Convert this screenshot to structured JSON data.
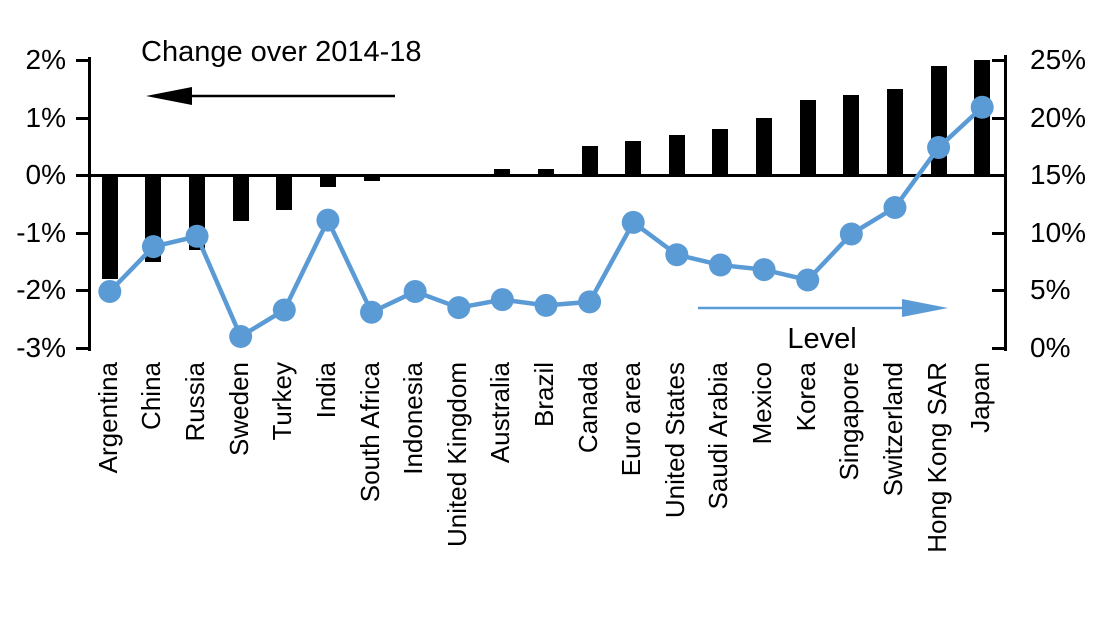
{
  "chart_data": {
    "type": "combo",
    "categories": [
      "Argentina",
      "China",
      "Russia",
      "Sweden",
      "Turkey",
      "India",
      "South Africa",
      "Indonesia",
      "United Kingdom",
      "Australia",
      "Brazil",
      "Canada",
      "Euro area",
      "United States",
      "Saudi Arabia",
      "Mexico",
      "Korea",
      "Singapore",
      "Switzerland",
      "Hong Kong SAR",
      "Japan"
    ],
    "series": [
      {
        "name": "Change over 2014-18",
        "type": "bar",
        "axis": "left",
        "color": "#000000",
        "values": [
          -1.8,
          -1.5,
          -1.3,
          -0.8,
          -0.6,
          -0.2,
          -0.1,
          0.0,
          0.0,
          0.1,
          0.1,
          0.5,
          0.6,
          0.7,
          0.8,
          1.0,
          1.3,
          1.4,
          1.5,
          1.9,
          2.0
        ]
      },
      {
        "name": "Level",
        "type": "line",
        "axis": "right",
        "color": "#5B9BD5",
        "values": [
          4.9,
          8.8,
          9.7,
          1.0,
          3.3,
          11.1,
          3.1,
          4.9,
          3.5,
          4.2,
          3.7,
          4.0,
          10.9,
          8.1,
          7.2,
          6.8,
          5.9,
          9.9,
          12.2,
          17.4,
          20.9
        ]
      }
    ],
    "left_axis": {
      "range": [
        -3,
        2
      ],
      "ticks": [
        {
          "label": "2%",
          "value": 2
        },
        {
          "label": "1%",
          "value": 1
        },
        {
          "label": "0%",
          "value": 0
        },
        {
          "label": "-1%",
          "value": -1
        },
        {
          "label": "-2%",
          "value": -2
        },
        {
          "label": "-3%",
          "value": -3
        }
      ]
    },
    "right_axis": {
      "range": [
        0,
        25
      ],
      "ticks": [
        {
          "label": "25%",
          "value": 25
        },
        {
          "label": "20%",
          "value": 20
        },
        {
          "label": "15%",
          "value": 15
        },
        {
          "label": "10%",
          "value": 10
        },
        {
          "label": "5%",
          "value": 5
        },
        {
          "label": "0%",
          "value": 0
        }
      ]
    },
    "annotations": {
      "bar_series_label": "Change over 2014-18",
      "line_series_label": "Level",
      "bar_arrow_direction": "left",
      "line_arrow_direction": "right"
    },
    "grid": false,
    "legend_position": "in-plot annotations with arrows"
  }
}
